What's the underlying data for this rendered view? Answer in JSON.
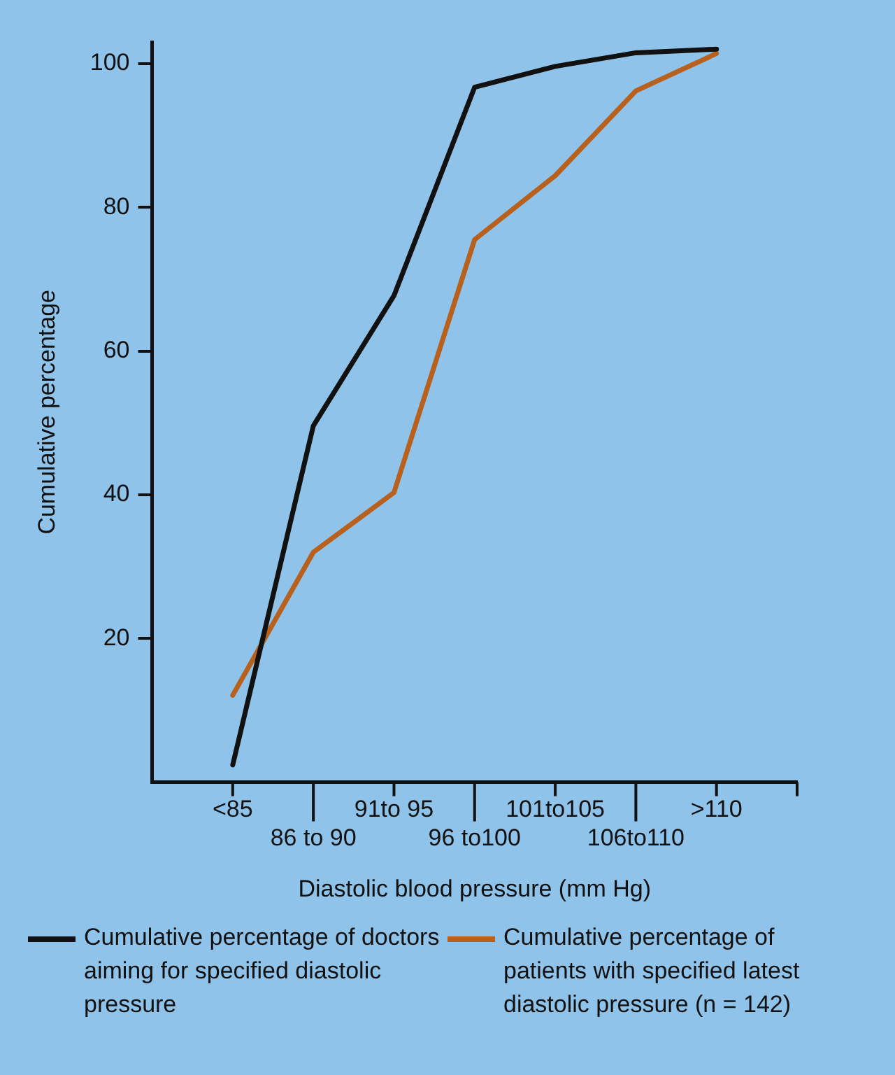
{
  "chart_data": {
    "type": "line",
    "xlabel": "Diastolic blood pressure (mm Hg)",
    "ylabel": "Cumulative percentage",
    "categories": [
      "<85",
      "86 to 90",
      "91to 95",
      "96 to100",
      "101to105",
      "106to110",
      ">110"
    ],
    "series": [
      {
        "name": "Cumulative percentage of doctors aiming for specified diastolic pressure",
        "color": "#111111",
        "values": [
          2.4,
          49.6,
          67.7,
          96.7,
          99.6,
          101.5,
          102
        ]
      },
      {
        "name": "Cumulative percentage of patients with specified latest diastolic pressure (n = 142)",
        "color": "#b8601c",
        "values": [
          12.1,
          32,
          40.3,
          75.5,
          84.4,
          96.2,
          101.4
        ]
      }
    ],
    "ylim": [
      0,
      103
    ],
    "yticks": [
      20,
      40,
      60,
      80,
      100
    ],
    "grid": false,
    "legend": "bottom",
    "marker": "none",
    "line_style": "solid"
  }
}
